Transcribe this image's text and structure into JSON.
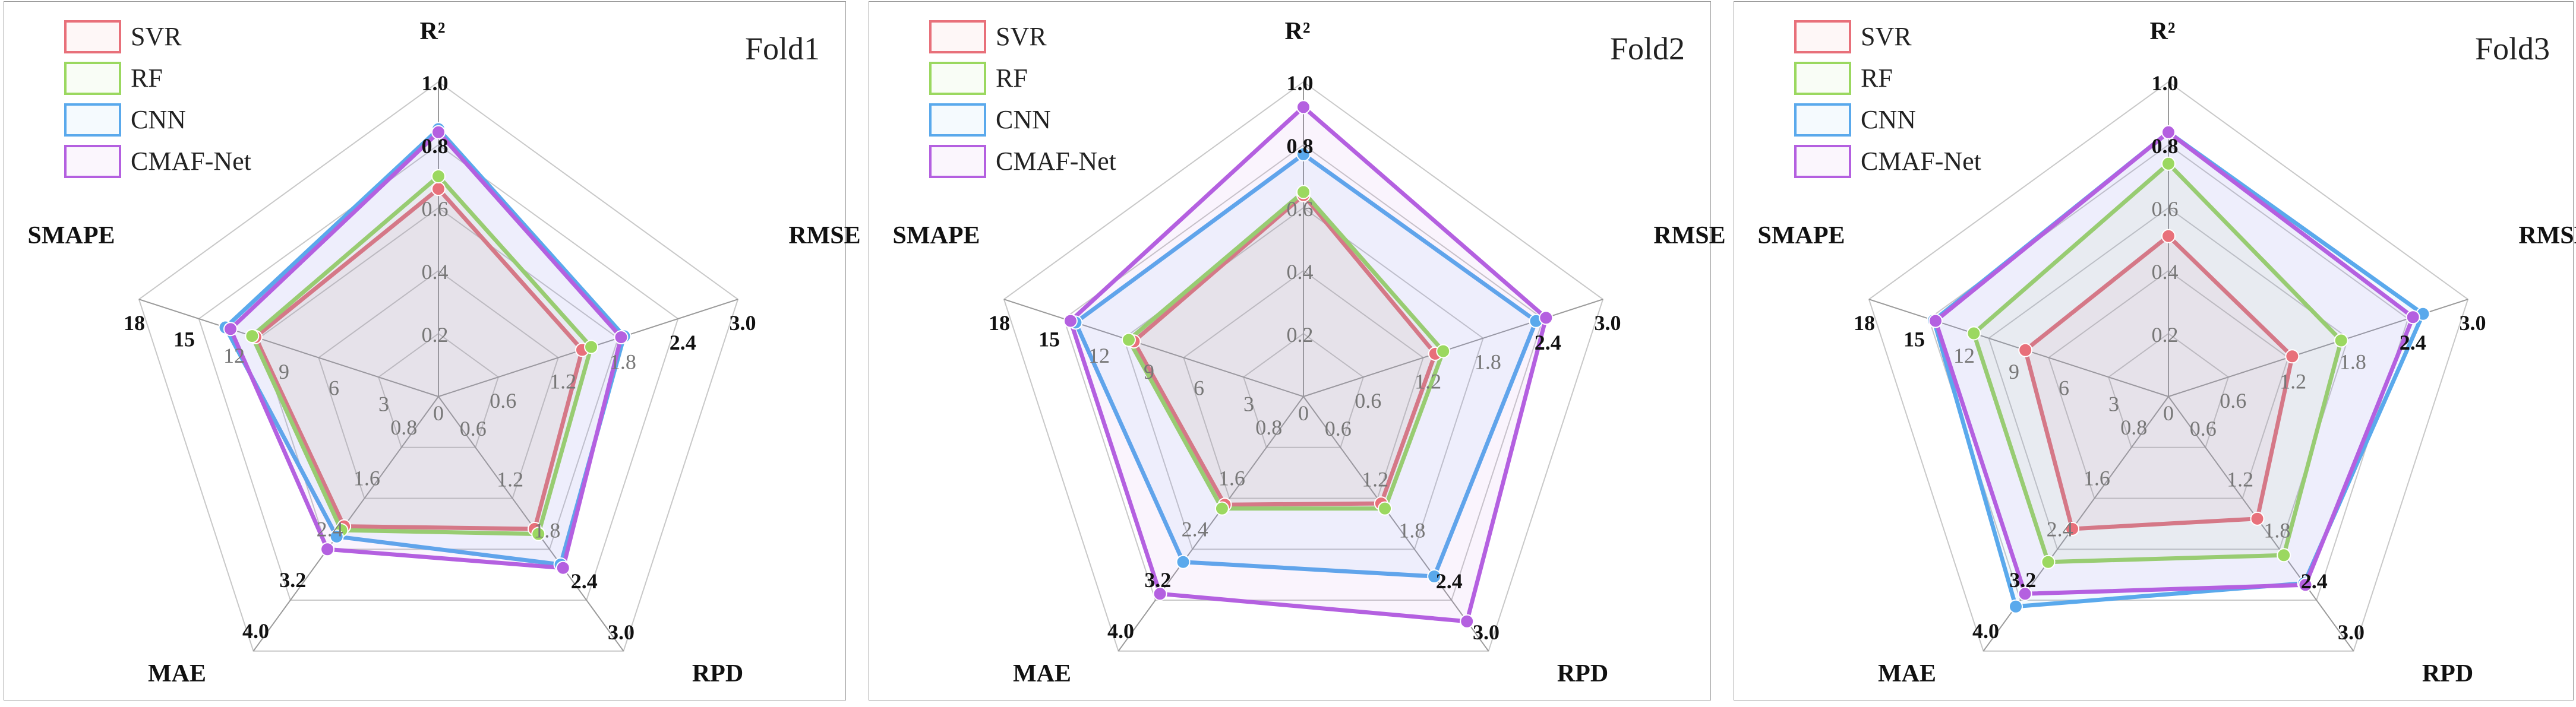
{
  "chart_data": [
    {
      "type": "radar",
      "title": "Fold1",
      "axes": [
        {
          "name": "R²",
          "ticks": [
            "0",
            "0.2",
            "0.4",
            "0.6",
            "0.8",
            "1.0"
          ],
          "range": [
            0,
            1.0
          ]
        },
        {
          "name": "RMSE",
          "ticks": [
            "0",
            "0.6",
            "1.2",
            "1.8",
            "2.4",
            "3.0"
          ],
          "range": [
            0,
            3.0
          ]
        },
        {
          "name": "RPD",
          "ticks": [
            "0",
            "0.6",
            "1.2",
            "1.8",
            "2.4",
            "3.0"
          ],
          "range": [
            0,
            3.0
          ]
        },
        {
          "name": "MAE",
          "ticks": [
            "0",
            "0.8",
            "1.6",
            "2.4",
            "3.2",
            "4.0"
          ],
          "range": [
            0,
            4.0
          ]
        },
        {
          "name": "SMAPE",
          "ticks": [
            "0",
            "3",
            "6",
            "9",
            "12",
            "15",
            "18"
          ],
          "range": [
            0,
            18
          ]
        }
      ],
      "series": [
        {
          "name": "SVR",
          "color": "#e8707a",
          "values": [
            0.66,
            1.44,
            1.56,
            2.04,
            11.0
          ]
        },
        {
          "name": "RF",
          "color": "#9bd860",
          "values": [
            0.7,
            1.53,
            1.62,
            2.1,
            11.2
          ]
        },
        {
          "name": "CNN",
          "color": "#5aa9ec",
          "values": [
            0.85,
            1.86,
            1.98,
            2.2,
            12.8
          ]
        },
        {
          "name": "CMAF-Net",
          "color": "#b460e0",
          "values": [
            0.84,
            1.83,
            2.02,
            2.4,
            12.5
          ]
        }
      ],
      "legend_position": "top-left",
      "grid": true
    },
    {
      "type": "radar",
      "title": "Fold2",
      "axes": [
        {
          "name": "R²",
          "ticks": [
            "0",
            "0.2",
            "0.4",
            "0.6",
            "0.8",
            "1.0"
          ],
          "range": [
            0,
            1.0
          ]
        },
        {
          "name": "RMSE",
          "ticks": [
            "0",
            "0.6",
            "1.2",
            "1.8",
            "2.4",
            "3.0"
          ],
          "range": [
            0,
            3.0
          ]
        },
        {
          "name": "RPD",
          "ticks": [
            "0",
            "0.6",
            "1.2",
            "1.8",
            "2.4",
            "3.0"
          ],
          "range": [
            0,
            3.0
          ]
        },
        {
          "name": "MAE",
          "ticks": [
            "0",
            "0.8",
            "1.6",
            "2.4",
            "3.2",
            "4.0"
          ],
          "range": [
            0,
            4.0
          ]
        },
        {
          "name": "SMAPE",
          "ticks": [
            "0",
            "3",
            "6",
            "9",
            "12",
            "15",
            "18"
          ],
          "range": [
            0,
            18
          ]
        }
      ],
      "series": [
        {
          "name": "SVR",
          "color": "#e8707a",
          "values": [
            0.64,
            1.32,
            1.26,
            1.7,
            10.2
          ]
        },
        {
          "name": "RF",
          "color": "#9bd860",
          "values": [
            0.65,
            1.4,
            1.32,
            1.76,
            10.5
          ]
        },
        {
          "name": "CNN",
          "color": "#5aa9ec",
          "values": [
            0.77,
            2.33,
            2.12,
            2.6,
            13.7
          ]
        },
        {
          "name": "CMAF-Net",
          "color": "#b460e0",
          "values": [
            0.92,
            2.43,
            2.65,
            3.1,
            14.0
          ]
        }
      ],
      "legend_position": "top-left",
      "grid": true
    },
    {
      "type": "radar",
      "title": "Fold3",
      "axes": [
        {
          "name": "R²",
          "ticks": [
            "0",
            "0.2",
            "0.4",
            "0.6",
            "0.8",
            "1.0"
          ],
          "range": [
            0,
            1.0
          ]
        },
        {
          "name": "RMSE",
          "ticks": [
            "0",
            "0.6",
            "1.2",
            "1.8",
            "2.4",
            "3.0"
          ],
          "range": [
            0,
            3.0
          ]
        },
        {
          "name": "RPD",
          "ticks": [
            "0",
            "0.6",
            "1.2",
            "1.8",
            "2.4",
            "3.0"
          ],
          "range": [
            0,
            3.0
          ]
        },
        {
          "name": "MAE",
          "ticks": [
            "0",
            "0.8",
            "1.6",
            "2.4",
            "3.2",
            "4.0"
          ],
          "range": [
            0,
            4.0
          ]
        },
        {
          "name": "SMAPE",
          "ticks": [
            "0",
            "3",
            "6",
            "9",
            "12",
            "15",
            "18"
          ],
          "range": [
            0,
            18
          ]
        }
      ],
      "series": [
        {
          "name": "SVR",
          "color": "#e8707a",
          "values": [
            0.51,
            1.24,
            1.44,
            2.08,
            8.6
          ]
        },
        {
          "name": "RF",
          "color": "#9bd860",
          "values": [
            0.74,
            1.73,
            1.87,
            2.6,
            11.7
          ]
        },
        {
          "name": "CNN",
          "color": "#5aa9ec",
          "values": [
            0.84,
            2.55,
            2.2,
            3.3,
            14.1
          ]
        },
        {
          "name": "CMAF-Net",
          "color": "#b460e0",
          "values": [
            0.84,
            2.45,
            2.22,
            3.1,
            14.0
          ]
        }
      ],
      "legend_position": "top-left",
      "grid": true
    }
  ]
}
